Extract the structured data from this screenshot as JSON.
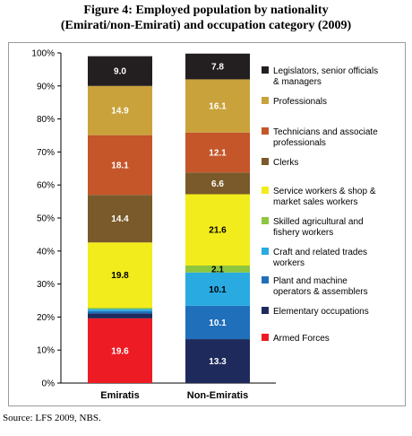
{
  "title_lines": [
    "Figure 4: Employed population by nationality",
    "(Emirati/non-Emirati)  and occupation category (2009)"
  ],
  "source": "Source: LFS 2009, NBS.",
  "chart_data": {
    "type": "bar",
    "stacked": true,
    "percent": true,
    "categories": [
      "Emiratis",
      "Non-Emiratis"
    ],
    "yticks": [
      "0%",
      "10%",
      "20%",
      "30%",
      "40%",
      "50%",
      "60%",
      "70%",
      "80%",
      "90%",
      "100%"
    ],
    "ylim": [
      0,
      100
    ],
    "legend_position": "right",
    "series": [
      {
        "name": "Armed Forces",
        "legend_lines": [
          "Armed Forces"
        ],
        "color": "#ed1c24",
        "values": [
          19.6,
          0
        ],
        "labels": [
          "19.6",
          ""
        ]
      },
      {
        "name": "Elementary occupations",
        "legend_lines": [
          "Elementary occupations"
        ],
        "color": "#1f2a5c",
        "values": [
          1.5,
          13.3
        ],
        "labels": [
          "",
          "13.3"
        ]
      },
      {
        "name": "Plant and machine operators & assemblers",
        "legend_lines": [
          "Plant and machine",
          "operators & assemblers"
        ],
        "color": "#1f6fba",
        "values": [
          0.7,
          10.1
        ],
        "labels": [
          "",
          "10.1"
        ]
      },
      {
        "name": "Craft and related trades workers",
        "legend_lines": [
          "Craft and related trades",
          "workers"
        ],
        "color": "#29aae1",
        "values": [
          0.6,
          10.1
        ],
        "labels": [
          "",
          "10.1"
        ]
      },
      {
        "name": "Skilled agricultural and fishery workers",
        "legend_lines": [
          "Skilled agricultural and",
          "fishery workers"
        ],
        "color": "#8dc63f",
        "values": [
          0.4,
          2.1
        ],
        "labels": [
          "",
          "2.1"
        ]
      },
      {
        "name": "Service workers & shop & market sales workers",
        "legend_lines": [
          "Service workers & shop &",
          "market sales workers"
        ],
        "color": "#f2ec1c",
        "values": [
          19.8,
          21.6
        ],
        "labels": [
          "19.8",
          "21.6"
        ]
      },
      {
        "name": "Clerks",
        "legend_lines": [
          "Clerks"
        ],
        "color": "#7a5a2a",
        "values": [
          14.4,
          6.6
        ],
        "labels": [
          "14.4",
          "6.6"
        ]
      },
      {
        "name": "Technicians and associate professionals",
        "legend_lines": [
          "Technicians and associate",
          "professionals"
        ],
        "color": "#c4562a",
        "values": [
          18.1,
          12.1
        ],
        "labels": [
          "18.1",
          "12.1"
        ]
      },
      {
        "name": "Professionals",
        "legend_lines": [
          "Professionals"
        ],
        "color": "#c9a23c",
        "values": [
          14.9,
          16.1
        ],
        "labels": [
          "14.9",
          "16.1"
        ]
      },
      {
        "name": "Legislators, senior officials & managers",
        "legend_lines": [
          "Legislators, senior officials",
          "& managers"
        ],
        "color": "#231f20",
        "values": [
          9.0,
          7.8
        ],
        "labels": [
          "9.0",
          "7.8"
        ]
      }
    ]
  }
}
